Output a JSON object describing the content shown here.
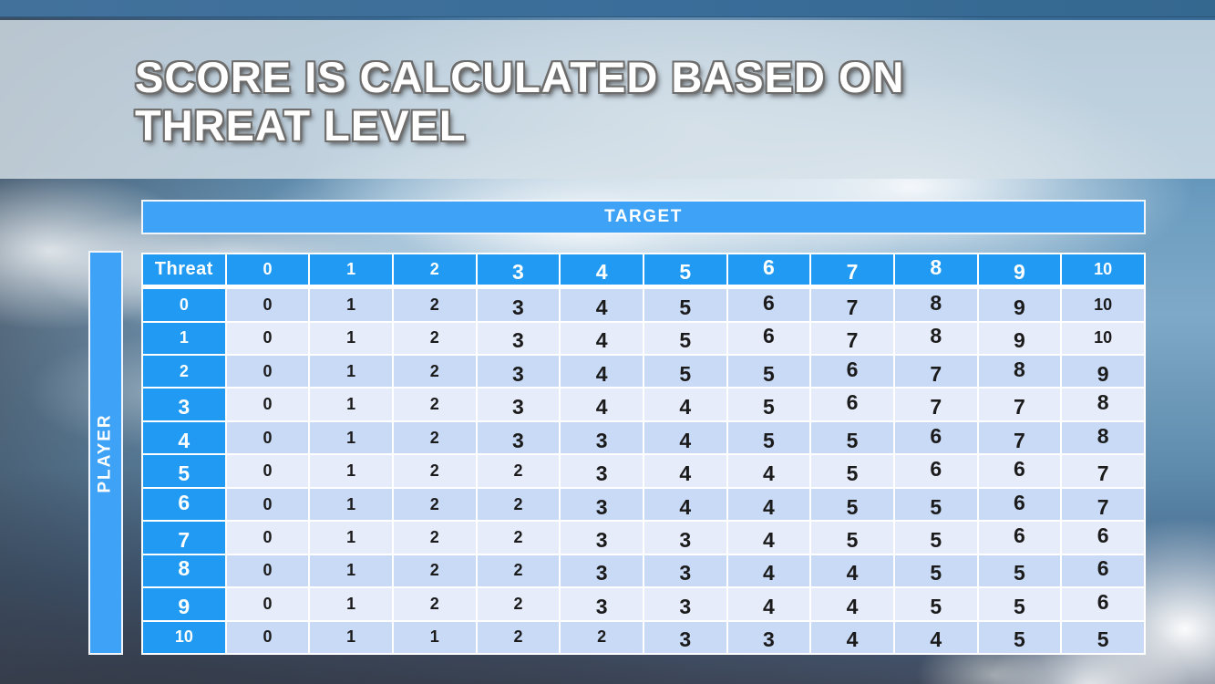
{
  "slide": {
    "title_line1": "SCORE IS CALCULATED BASED ON",
    "title_line2": "THREAT LEVEL"
  },
  "axes": {
    "target_label": "TARGET",
    "player_label": "PLAYER"
  },
  "score_table": {
    "corner_header": "Threat",
    "column_headers": [
      "0",
      "1",
      "2",
      "3",
      "4",
      "5",
      "6",
      "7",
      "8",
      "9",
      "10"
    ],
    "rows": [
      {
        "threat": "0",
        "scores": [
          "0",
          "1",
          "2",
          "3",
          "4",
          "5",
          "6",
          "7",
          "8",
          "9",
          "10"
        ]
      },
      {
        "threat": "1",
        "scores": [
          "0",
          "1",
          "2",
          "3",
          "4",
          "5",
          "6",
          "7",
          "8",
          "9",
          "10"
        ]
      },
      {
        "threat": "2",
        "scores": [
          "0",
          "1",
          "2",
          "3",
          "4",
          "5",
          "5",
          "6",
          "7",
          "8",
          "9"
        ]
      },
      {
        "threat": "3",
        "scores": [
          "0",
          "1",
          "2",
          "3",
          "4",
          "4",
          "5",
          "6",
          "7",
          "7",
          "8"
        ]
      },
      {
        "threat": "4",
        "scores": [
          "0",
          "1",
          "2",
          "3",
          "3",
          "4",
          "5",
          "5",
          "6",
          "7",
          "8"
        ]
      },
      {
        "threat": "5",
        "scores": [
          "0",
          "1",
          "2",
          "2",
          "3",
          "4",
          "4",
          "5",
          "6",
          "6",
          "7"
        ]
      },
      {
        "threat": "6",
        "scores": [
          "0",
          "1",
          "2",
          "2",
          "3",
          "4",
          "4",
          "5",
          "5",
          "6",
          "7"
        ]
      },
      {
        "threat": "7",
        "scores": [
          "0",
          "1",
          "2",
          "2",
          "3",
          "3",
          "4",
          "5",
          "5",
          "6",
          "6"
        ]
      },
      {
        "threat": "8",
        "scores": [
          "0",
          "1",
          "2",
          "2",
          "3",
          "3",
          "4",
          "4",
          "5",
          "5",
          "6"
        ]
      },
      {
        "threat": "9",
        "scores": [
          "0",
          "1",
          "2",
          "2",
          "3",
          "3",
          "4",
          "4",
          "5",
          "5",
          "6"
        ]
      },
      {
        "threat": "10",
        "scores": [
          "0",
          "1",
          "1",
          "2",
          "2",
          "3",
          "3",
          "4",
          "4",
          "5",
          "5"
        ]
      }
    ]
  },
  "colors": {
    "header_blue": "#209AF2",
    "axis_bar_blue": "#3EA2F6",
    "row_band_dark": "#C9DAF6",
    "row_band_light": "#E7ECFA",
    "cell_text": "#1B1B1B",
    "title_text": "#FFFFFF",
    "title_band": "#D6E0E8",
    "top_strip": "#3A6D99"
  }
}
